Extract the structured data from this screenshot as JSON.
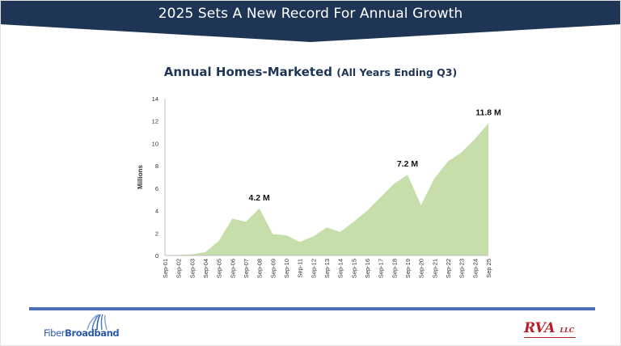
{
  "banner": {
    "title": "2025 Sets A New Record For Annual Growth",
    "background": "#1f3556"
  },
  "chart_title": {
    "main": "Annual Homes-Marketed",
    "sub": "(All Years Ending Q3)"
  },
  "chart_data": {
    "type": "area",
    "title": "Annual Homes-Marketed (All Years Ending Q3)",
    "xlabel": "",
    "ylabel": "Millions",
    "ylim": [
      0,
      14
    ],
    "yticks": [
      0,
      2,
      4,
      6,
      8,
      10,
      12,
      14
    ],
    "grid": false,
    "legend": "none",
    "fill_color": "#c6deaa",
    "categories": [
      "Sep-01",
      "Sep-02",
      "Sep-03",
      "Sep-04",
      "Sep-05",
      "Sep-06",
      "Sep-07",
      "Sep-08",
      "Sep-09",
      "Sep-10",
      "Sep-11",
      "Sep-12",
      "Sep-13",
      "Sep-14",
      "Sep-15",
      "Sep-16",
      "Sep-17",
      "Sep-18",
      "Sep-19",
      "Sep-20",
      "Sep-21",
      "Sep-22",
      "Sep-23",
      "Sep-24",
      "Sep 25"
    ],
    "values": [
      0,
      0.05,
      0.1,
      0.3,
      1.3,
      3.3,
      3.0,
      4.2,
      1.9,
      1.8,
      1.2,
      1.7,
      2.5,
      2.1,
      3.0,
      4.0,
      5.2,
      6.4,
      7.2,
      4.5,
      6.9,
      8.4,
      9.2,
      10.4,
      11.8
    ],
    "annotations": [
      {
        "text": "4.2 M",
        "category": "Sep-08",
        "value": 4.2
      },
      {
        "text": "7.2 M",
        "category": "Sep-19",
        "value": 7.2
      },
      {
        "text": "11.8 M",
        "category": "Sep 25",
        "value": 11.8
      }
    ]
  },
  "footer": {
    "divider_color": "#4a6db5",
    "left_logo": {
      "text_a": "Fiber",
      "text_b": "Broadband",
      "icon": "fiber-strands-icon",
      "color": "#2b5aa8"
    },
    "right_logo": {
      "text": "RVA",
      "suffix": "LLC",
      "color": "#b8202a"
    }
  }
}
